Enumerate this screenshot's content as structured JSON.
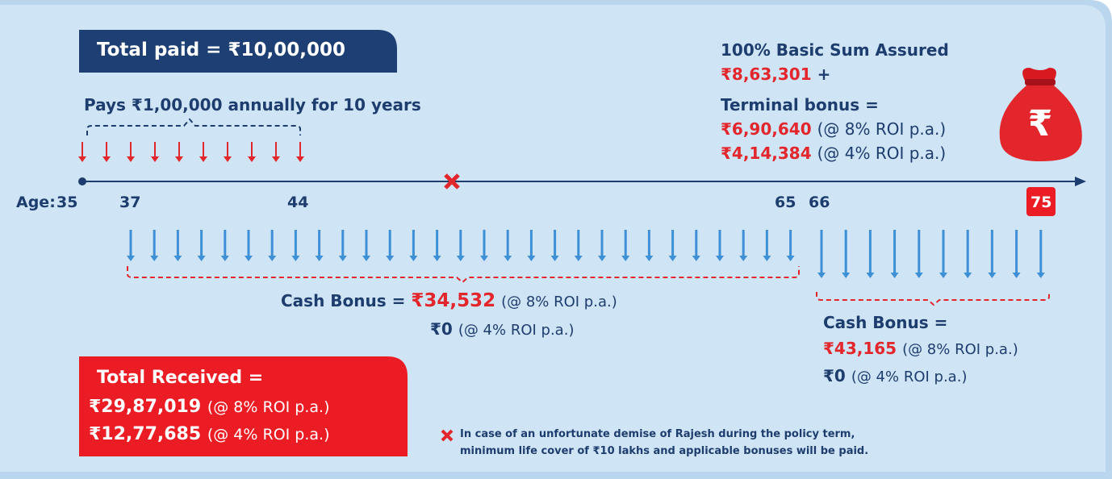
{
  "total_paid": "Total paid = ₹10,00,000",
  "pays": "Pays ₹1,00,000 annually for 10 years",
  "maturity": {
    "title": "100% Basic Sum Assured",
    "sum_amount": "₹8,63,301",
    "plus": "+",
    "terminal_label": "Terminal bonus =",
    "terminal_8": {
      "amount": "₹6,90,640",
      "note": "(@ 8% ROI p.a.)"
    },
    "terminal_4": {
      "amount": "₹4,14,384",
      "note": "(@ 4% ROI p.a.)"
    }
  },
  "bag_symbol": "₹",
  "timeline": {
    "age_label": "Age:",
    "ages": [
      "35",
      "37",
      "44",
      "65",
      "66",
      "75"
    ]
  },
  "cash_bonus_1": {
    "label": "Cash Bonus =",
    "amount_8": "₹34,532",
    "note_8": "(@ 8% ROI p.a.)",
    "amount_4": "₹0",
    "note_4": "(@ 4% ROI p.a.)"
  },
  "cash_bonus_2": {
    "label": "Cash Bonus =",
    "amount_8": "₹43,165",
    "note_8": "(@ 8% ROI p.a.)",
    "amount_4": "₹0",
    "note_4": "(@ 4% ROI p.a.)"
  },
  "total_received": {
    "label": "Total Received =",
    "amount_8": "₹29,87,019",
    "note_8": "(@ 8% ROI p.a.)",
    "amount_4": "₹12,77,685",
    "note_4": "(@ 4% ROI p.a.)"
  },
  "footnote": [
    "In case of an unfortunate demise of Rajesh during the policy term,",
    "minimum life cover of ₹10 lakhs and applicable bonuses will be paid."
  ]
}
